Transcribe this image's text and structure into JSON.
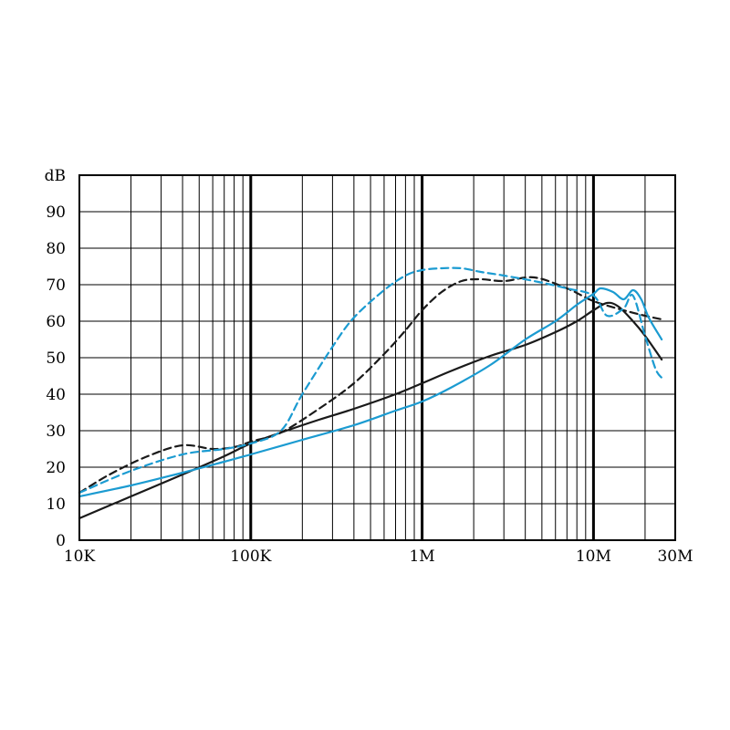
{
  "chart_data": {
    "type": "line",
    "title": "",
    "xlabel": "",
    "ylabel": "dB",
    "x_scale": "log",
    "xlim": [
      10000,
      30000000
    ],
    "ylim": [
      0,
      100
    ],
    "x_ticks": [
      {
        "value": 10000,
        "label": "10K"
      },
      {
        "value": 100000,
        "label": "100K"
      },
      {
        "value": 1000000,
        "label": "1M"
      },
      {
        "value": 10000000,
        "label": "10M"
      },
      {
        "value": 30000000,
        "label": "30M"
      }
    ],
    "y_ticks": [
      0,
      10,
      20,
      30,
      40,
      50,
      60,
      70,
      80,
      90
    ],
    "grid": true,
    "colors": {
      "black": "#1a1a1a",
      "blue": "#1b9bd1"
    },
    "series": [
      {
        "color": "#1a1a1a",
        "dash": false,
        "x": [
          10000,
          20000,
          40000,
          70000,
          100000,
          150000,
          250000,
          400000,
          700000,
          1000000,
          1500000,
          2500000,
          4000000,
          6000000,
          8000000,
          10000000,
          12000000,
          14000000,
          17000000,
          20000000,
          25000000
        ],
        "y": [
          6,
          12,
          18,
          23,
          26.5,
          29.5,
          33,
          36,
          40,
          43,
          46.5,
          50.5,
          53.5,
          57,
          60,
          63,
          65,
          64,
          60,
          56,
          49.5
        ]
      },
      {
        "color": "#1a1a1a",
        "dash": true,
        "x": [
          10000,
          15000,
          25000,
          40000,
          60000,
          80000,
          100000,
          150000,
          250000,
          400000,
          600000,
          800000,
          1000000,
          1300000,
          1700000,
          2200000,
          3000000,
          4500000,
          7000000,
          10000000,
          15000000,
          20000000,
          25000000
        ],
        "y": [
          13,
          18,
          23,
          26,
          25,
          25.5,
          27,
          29.5,
          36,
          43,
          51,
          57.5,
          63,
          68,
          71,
          71.5,
          71,
          72,
          69,
          65.5,
          63,
          61.5,
          60.5
        ]
      },
      {
        "color": "#1b9bd1",
        "dash": false,
        "x": [
          10000,
          20000,
          40000,
          70000,
          100000,
          200000,
          400000,
          700000,
          1000000,
          1500000,
          2500000,
          4000000,
          6000000,
          8000000,
          10000000,
          11000000,
          13000000,
          15000000,
          17000000,
          19000000,
          21000000,
          25000000
        ],
        "y": [
          12,
          15,
          18.5,
          21.5,
          23.5,
          27.5,
          31.5,
          35.5,
          38,
          42,
          48,
          55,
          60,
          64.5,
          67.5,
          69,
          68,
          66,
          68.5,
          66,
          61,
          55
        ]
      },
      {
        "color": "#1b9bd1",
        "dash": true,
        "x": [
          10000,
          20000,
          40000,
          70000,
          100000,
          150000,
          200000,
          300000,
          400000,
          600000,
          800000,
          1000000,
          1300000,
          1700000,
          2200000,
          3000000,
          4500000,
          7000000,
          10000000,
          12000000,
          15000000,
          17000000,
          20000000,
          23000000,
          25000000
        ],
        "y": [
          13,
          19,
          23.5,
          25,
          26.5,
          30,
          40,
          53,
          61,
          68.5,
          72.5,
          74,
          74.5,
          74.5,
          73.5,
          72.5,
          71,
          69,
          67,
          61.5,
          63.5,
          67,
          56,
          47,
          44.5
        ]
      }
    ]
  }
}
